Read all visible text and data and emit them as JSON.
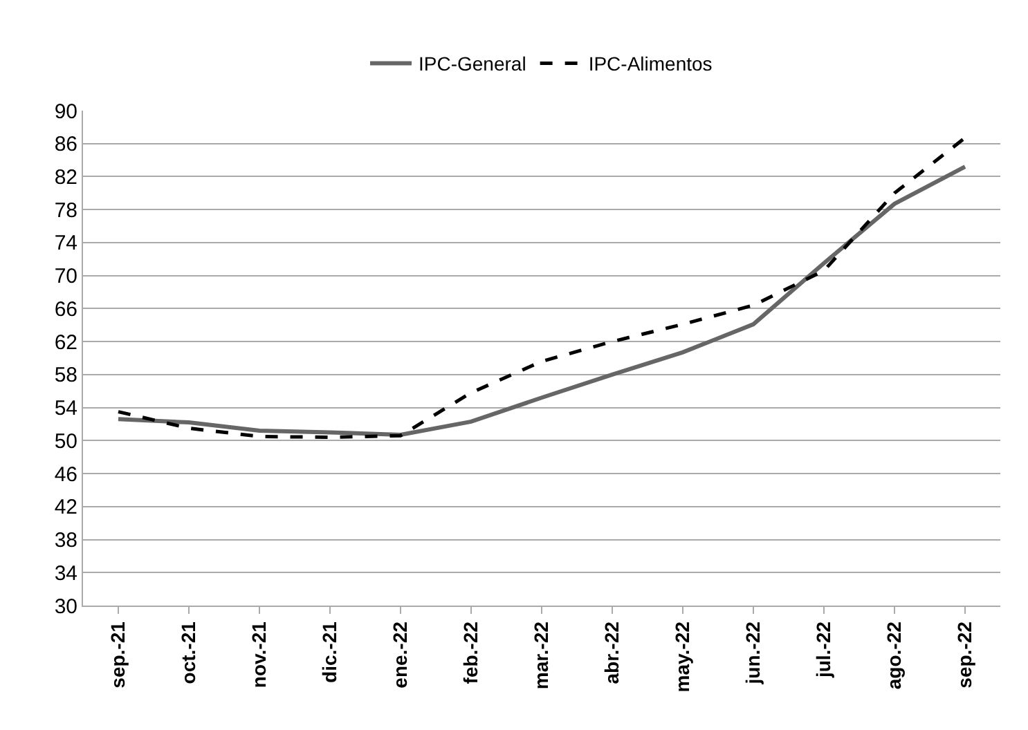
{
  "chart_data": {
    "type": "line",
    "categories": [
      "sep.-21",
      "oct.-21",
      "nov.-21",
      "dic.-21",
      "ene.-22",
      "feb.-22",
      "mar.-22",
      "abr.-22",
      "may.-22",
      "jun.-22",
      "jul.-22",
      "ago.-22",
      "sep.-22"
    ],
    "series": [
      {
        "name": "IPC-General",
        "color": "#666666",
        "line_style": "solid",
        "values": [
          52.6,
          52.2,
          51.2,
          51.0,
          50.7,
          52.3,
          55.2,
          58.0,
          60.7,
          64.1,
          71.5,
          78.7,
          83.2
        ]
      },
      {
        "name": "IPC-Alimentos",
        "color": "#000000",
        "line_style": "dashed",
        "values": [
          53.5,
          51.5,
          50.5,
          50.4,
          50.6,
          55.8,
          59.6,
          62.0,
          64.1,
          66.4,
          70.6,
          80.0,
          86.7
        ]
      }
    ],
    "ylim": [
      30,
      90
    ],
    "yticks": [
      30,
      34,
      38,
      42,
      46,
      50,
      54,
      58,
      62,
      66,
      70,
      74,
      78,
      82,
      86,
      90
    ],
    "grid": "y",
    "legend": "top",
    "marker": "none"
  }
}
